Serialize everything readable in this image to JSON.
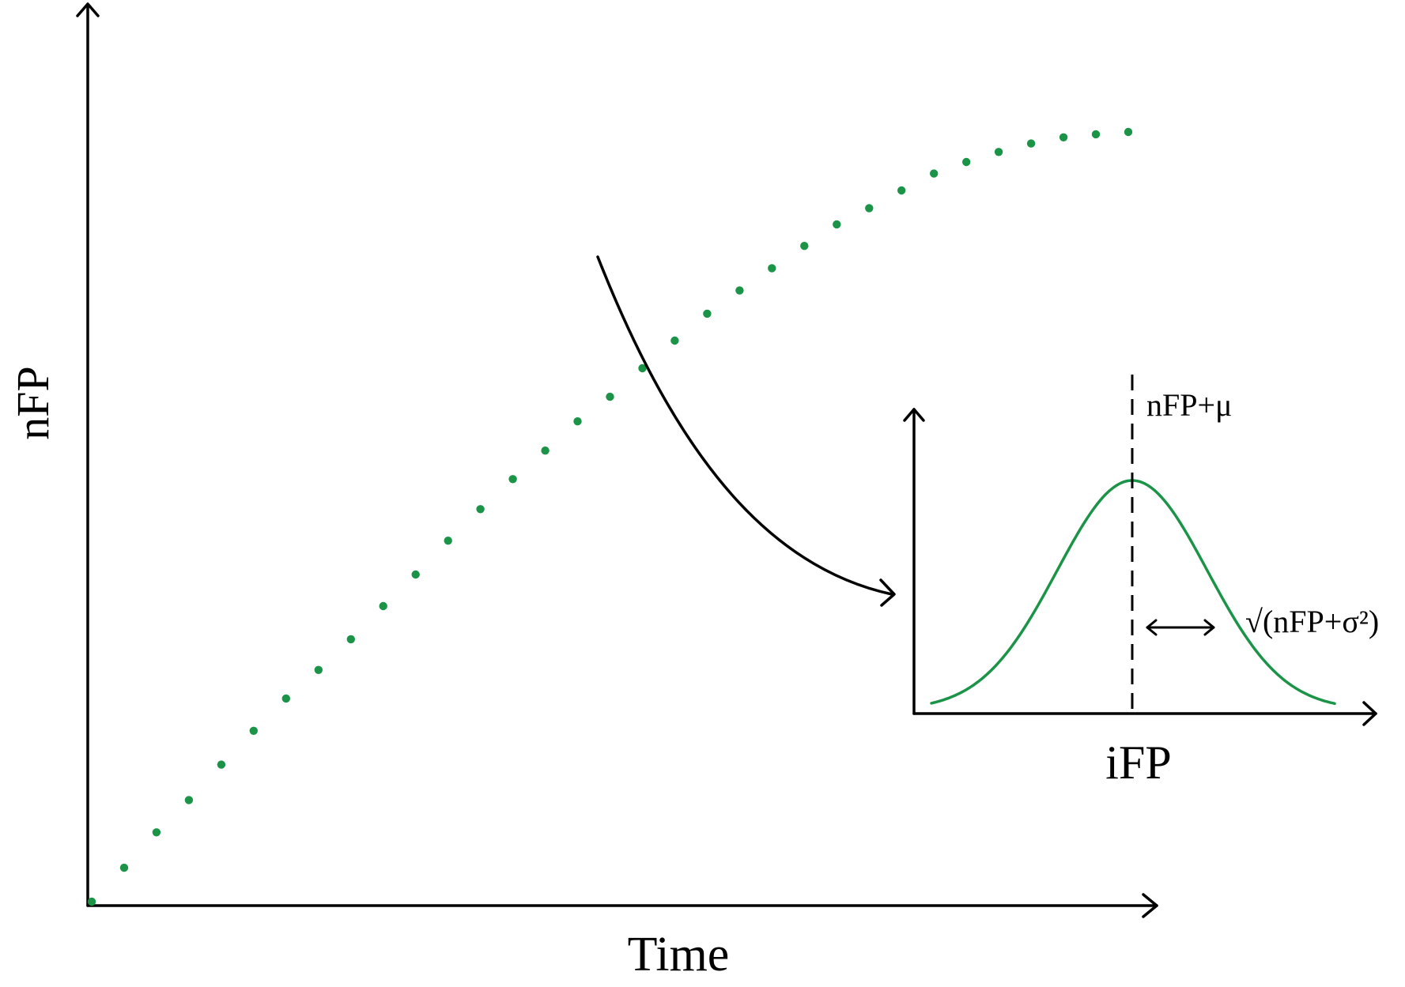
{
  "labels": {
    "y_axis": "nFP",
    "x_axis": "Time",
    "inset_x_axis": "iFP",
    "mean": "nFP+μ",
    "spread": "√(nFP+σ²)"
  },
  "colors": {
    "curve": "#1b9448",
    "ink": "#000000"
  },
  "nfp_series": {
    "description_shape": "saturating growth",
    "point_count": 33,
    "values": [
      0.0,
      0.044,
      0.09,
      0.132,
      0.178,
      0.222,
      0.264,
      0.301,
      0.341,
      0.384,
      0.425,
      0.469,
      0.51,
      0.549,
      0.586,
      0.624,
      0.656,
      0.693,
      0.729,
      0.764,
      0.794,
      0.823,
      0.852,
      0.88,
      0.901,
      0.924,
      0.946,
      0.961,
      0.974,
      0.985,
      0.993,
      0.997,
      1.0
    ]
  }
}
